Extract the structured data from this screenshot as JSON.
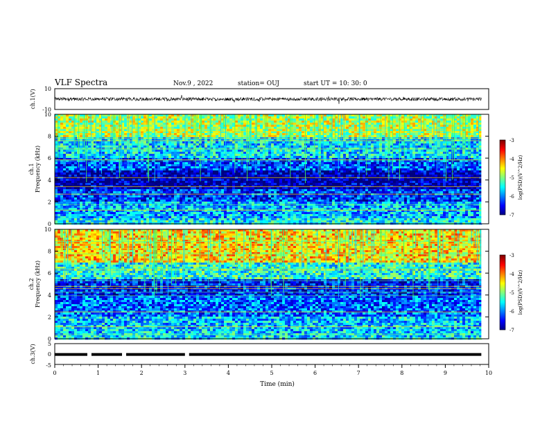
{
  "header": {
    "title": "VLF Spectra",
    "date": "Nov.9 , 2022",
    "station": "station= OUJ",
    "start": "start UT = 10: 30: 0"
  },
  "colors": {
    "spectrogram_low": "#000080",
    "spectrogram_mid": "#00c8ff",
    "spectrogram_high": "#ff0000",
    "trace": "#000000"
  },
  "chart_data": [
    {
      "type": "line",
      "panel": "waveform-ch1",
      "ylabel": "ch.1(V)",
      "ylim": [
        -10,
        10
      ],
      "yticks": [
        "10",
        "-10"
      ],
      "series": [
        {
          "values_description_only_in_pixels": false,
          "baseline": 0
        }
      ]
    },
    {
      "type": "heatmap",
      "panel": "spectrogram-ch1",
      "ylabel": "ch.1\nFrequency (kHz)",
      "ylim": [
        0,
        10
      ],
      "yticks": [
        "0",
        "2",
        "4",
        "6",
        "8",
        "10"
      ],
      "xlim": [
        0,
        10
      ],
      "colorbar": {
        "label": "log(PSD)(V^2/Hz)",
        "range": [
          -7,
          -3
        ],
        "ticks": [
          "-3",
          "-4",
          "-5",
          "-6",
          "-7"
        ]
      },
      "bands": [
        {
          "f_low": 0.0,
          "f_high": 0.6,
          "level": -5.5
        },
        {
          "f_low": 0.6,
          "f_high": 2.0,
          "level": -5.8
        },
        {
          "f_low": 2.0,
          "f_high": 3.2,
          "level": -6.3
        },
        {
          "f_low": 3.2,
          "f_high": 4.8,
          "level": -6.8
        },
        {
          "f_low": 4.8,
          "f_high": 6.0,
          "level": -6.2
        },
        {
          "f_low": 6.0,
          "f_high": 8.0,
          "level": -5.6
        },
        {
          "f_low": 8.0,
          "f_high": 10.0,
          "level": -4.8
        }
      ]
    },
    {
      "type": "heatmap",
      "panel": "spectrogram-ch2",
      "ylabel": "ch.2\nFrequency (kHz)",
      "ylim": [
        0,
        10
      ],
      "yticks": [
        "0",
        "2",
        "4",
        "6",
        "8",
        "10"
      ],
      "xlim": [
        0,
        10
      ],
      "colorbar": {
        "label": "log(PSD)(V^2/Hz)",
        "range": [
          -7,
          -3
        ],
        "ticks": [
          "-3",
          "-4",
          "-5",
          "-6",
          "-7"
        ]
      },
      "bands": [
        {
          "f_low": 0.0,
          "f_high": 0.6,
          "level": -5.6
        },
        {
          "f_low": 0.6,
          "f_high": 2.0,
          "level": -5.7
        },
        {
          "f_low": 2.0,
          "f_high": 4.0,
          "level": -6.1
        },
        {
          "f_low": 4.0,
          "f_high": 5.5,
          "level": -6.4
        },
        {
          "f_low": 5.5,
          "f_high": 7.0,
          "level": -5.4
        },
        {
          "f_low": 7.0,
          "f_high": 10.0,
          "level": -4.4
        }
      ]
    },
    {
      "type": "line",
      "panel": "waveform-ch3",
      "ylabel": "ch.3(V)",
      "ylim": [
        -5,
        5
      ],
      "yticks": [
        "5",
        "0",
        "-5"
      ],
      "xlabel": "Time (min)",
      "xlim": [
        0,
        10
      ],
      "xticks": [
        "0",
        "1",
        "2",
        "3",
        "4",
        "5",
        "6",
        "7",
        "8",
        "9",
        "10"
      ],
      "series": [
        {
          "baseline": 0
        }
      ]
    }
  ]
}
